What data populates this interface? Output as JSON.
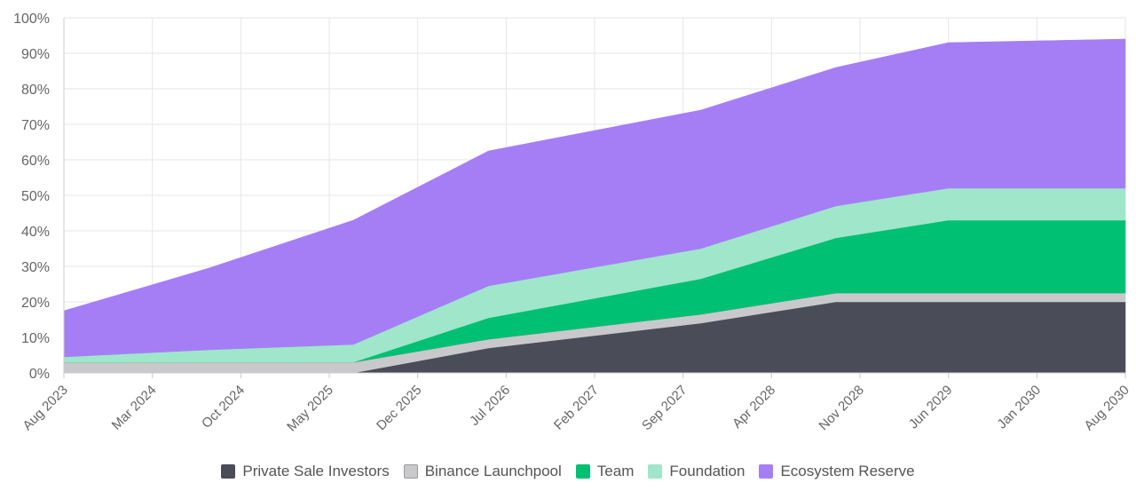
{
  "chart_data": {
    "type": "area",
    "stacked": true,
    "x": [
      "Aug 2023",
      "Oct 2024",
      "Dec 2025",
      "Sep 2027",
      "Jun 2029",
      "Aug 2030"
    ],
    "x_tick_labels": [
      "Aug 2023",
      "Mar 2024",
      "Oct 2024",
      "May 2025",
      "Dec 2025",
      "Jul 2026",
      "Feb 2027",
      "Sep 2027",
      "Apr 2028",
      "Nov 2028",
      "Jun 2029",
      "Jan 2030",
      "Aug 2030"
    ],
    "y_tick_labels": [
      "0%",
      "10%",
      "20%",
      "30%",
      "40%",
      "50%",
      "60%",
      "70%",
      "80%",
      "90%",
      "100%"
    ],
    "ylim": [
      0,
      100
    ],
    "y_unit": "%",
    "grid": true,
    "legend_position": "bottom-center",
    "series_points": {
      "Private Sale Investors": [
        [
          0,
          0
        ],
        [
          0.1364,
          0
        ],
        [
          0.2727,
          0
        ],
        [
          0.4,
          7
        ],
        [
          0.6,
          14
        ],
        [
          0.7273,
          20
        ],
        [
          1,
          20
        ]
      ],
      "Binance Launchpool": [
        [
          0,
          3
        ],
        [
          0.1364,
          3
        ],
        [
          0.2727,
          3
        ],
        [
          0.4,
          2.5
        ],
        [
          0.6,
          2.5
        ],
        [
          0.7273,
          2.5
        ],
        [
          1,
          2.5
        ]
      ],
      "Team": [
        [
          0,
          0
        ],
        [
          0.1364,
          0
        ],
        [
          0.2727,
          0
        ],
        [
          0.4,
          6
        ],
        [
          0.6,
          10
        ],
        [
          0.7273,
          15.5
        ],
        [
          0.8333,
          20.5
        ],
        [
          1,
          20.5
        ]
      ],
      "Foundation": [
        [
          0,
          1.5
        ],
        [
          0.1364,
          3.5
        ],
        [
          0.2727,
          5
        ],
        [
          0.4,
          9
        ],
        [
          0.6,
          8.5
        ],
        [
          0.7273,
          9
        ],
        [
          0.8333,
          9
        ],
        [
          1,
          9
        ]
      ],
      "Ecosystem Reserve": [
        [
          0,
          13
        ],
        [
          0.1364,
          23
        ],
        [
          0.2727,
          35
        ],
        [
          0.4,
          38
        ],
        [
          0.6,
          39
        ],
        [
          0.7273,
          39
        ],
        [
          0.8333,
          41
        ],
        [
          1,
          42
        ]
      ]
    },
    "series": [
      {
        "name": "Private Sale Investors",
        "color": "#4a4d57"
      },
      {
        "name": "Binance Launchpool",
        "color": "#c9c9cc",
        "stroke": "#9a9a9e"
      },
      {
        "name": "Team",
        "color": "#00c074"
      },
      {
        "name": "Foundation",
        "color": "#9fe6ca"
      },
      {
        "name": "Ecosystem Reserve",
        "color": "#a57ef6"
      }
    ]
  }
}
